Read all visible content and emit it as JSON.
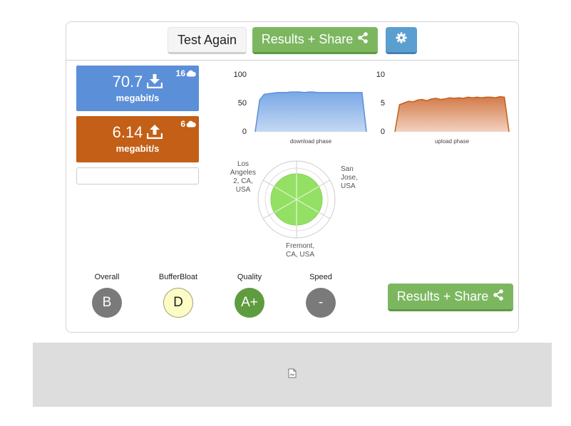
{
  "toolbar": {
    "test_again_label": "Test Again",
    "results_share_label": "Results + Share",
    "settings_icon": "gear-icon"
  },
  "download": {
    "value": "70.7",
    "unit": "megabit/s",
    "streams": "16",
    "color": "#5b8fd8"
  },
  "upload": {
    "value": "6.14",
    "unit": "megabit/s",
    "streams": "6",
    "color": "#c35f17"
  },
  "chart_data": [
    {
      "type": "area",
      "xlabel": "download phase",
      "yticks": [
        "100",
        "50",
        "0"
      ],
      "ylim": [
        0,
        100
      ],
      "values": [
        0,
        55,
        65,
        66,
        67,
        68,
        68,
        68,
        69,
        69,
        69,
        68,
        69,
        69,
        68,
        68,
        68,
        68,
        68,
        68,
        68,
        68,
        68,
        68,
        68,
        0
      ],
      "color": "#5b8fd8"
    },
    {
      "type": "area",
      "xlabel": "upload phase",
      "yticks": [
        "10",
        "5",
        "0"
      ],
      "ylim": [
        0,
        10
      ],
      "values": [
        0,
        4.7,
        5.0,
        5.3,
        5.2,
        5.5,
        5.6,
        5.4,
        5.7,
        5.8,
        5.6,
        5.7,
        5.9,
        5.8,
        5.9,
        5.8,
        6.0,
        5.9,
        6.0,
        5.9,
        6.0,
        6.0,
        5.9,
        6.1,
        6.0,
        0
      ],
      "color": "#c35f17"
    }
  ],
  "radar": {
    "labels": [
      "Los Angeles 2, CA, USA",
      "San Jose, USA",
      "Fremont, CA, USA"
    ],
    "label_lines": [
      [
        "Los",
        "Angeles",
        "2, CA,",
        "USA"
      ],
      [
        "San",
        "Jose,",
        "USA"
      ],
      [
        "Fremont,",
        "CA, USA"
      ]
    ]
  },
  "grades": [
    {
      "title": "Overall",
      "value": "B"
    },
    {
      "title": "BufferBloat",
      "value": "D"
    },
    {
      "title": "Quality",
      "value": "A+"
    },
    {
      "title": "Speed",
      "value": "-"
    }
  ]
}
